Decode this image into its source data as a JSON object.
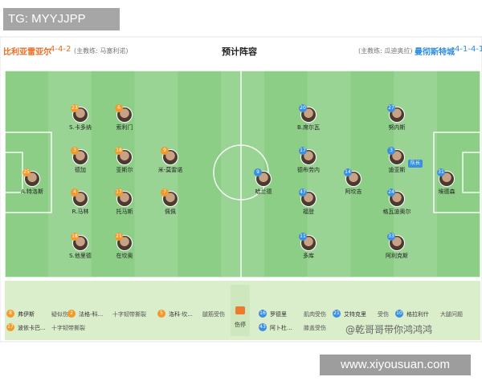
{
  "watermark": "TG: MYYJJPP",
  "header": {
    "home_team": "比利亚雷亚尔",
    "home_formation": "4-4-2",
    "home_coach": "(主教练: 马塞利诺)",
    "title": "预计阵容",
    "away_coach": "(主教练: 瓜迪奥拉)",
    "away_team": "曼彻斯特城",
    "away_formation": "4-1-4-1"
  },
  "home_players": [
    {
      "number": "25",
      "name": "A.特洛斯"
    },
    {
      "number": "23",
      "name": "S.卡多纳"
    },
    {
      "number": "3",
      "name": "德加"
    },
    {
      "number": "4",
      "name": "R.马林"
    },
    {
      "number": "18",
      "name": "S.他里德"
    },
    {
      "number": "6",
      "name": "索利门"
    },
    {
      "number": "18",
      "name": "亚斯尔"
    },
    {
      "number": "17",
      "name": "托马斯"
    },
    {
      "number": "21",
      "name": "在坎奥"
    },
    {
      "number": "9",
      "name": "米-莫雷诺"
    },
    {
      "number": "7",
      "name": "佩佩"
    }
  ],
  "away_players": [
    {
      "number": "9",
      "name": "哈兰德"
    },
    {
      "number": "20",
      "name": "B.席尔瓦"
    },
    {
      "number": "17",
      "name": "德布劳内"
    },
    {
      "number": "47",
      "name": "福登"
    },
    {
      "number": "11",
      "name": "多库"
    },
    {
      "number": "14",
      "name": "阿坎吉"
    },
    {
      "number": "27",
      "name": "努内斯"
    },
    {
      "number": "3",
      "name": "迪亚斯"
    },
    {
      "number": "24",
      "name": "格瓦迪奥尔"
    },
    {
      "number": "33",
      "name": "阿利克斯"
    },
    {
      "number": "31",
      "name": "埃德森"
    }
  ],
  "captain_label": "队长",
  "injury_label": "伤停",
  "home_injuries": [
    {
      "number": "8",
      "name": "弗伊斯",
      "reason": "疑似伤病"
    },
    {
      "number": "2",
      "name": "法格-科...",
      "reason": "十字韧带撕裂"
    },
    {
      "number": "5",
      "name": "洛科·坎...",
      "reason": "腿筋受伤"
    },
    {
      "number": "17",
      "name": "波依卡巴...",
      "reason": "十字韧带撕裂"
    }
  ],
  "away_injuries": [
    {
      "number": "16",
      "name": "罗德里",
      "reason": "肌肉受伤"
    },
    {
      "number": "21",
      "name": "艾特克里",
      "reason": "受伤"
    },
    {
      "number": "10",
      "name": "格拉利什",
      "reason": "大腿问题"
    },
    {
      "number": "43",
      "name": "阿卜杜...",
      "reason": "膝盖受伤"
    }
  ],
  "weibo": "@乾哥哥带你鸿鸿鸿",
  "site": "www.xiyousuan.com"
}
